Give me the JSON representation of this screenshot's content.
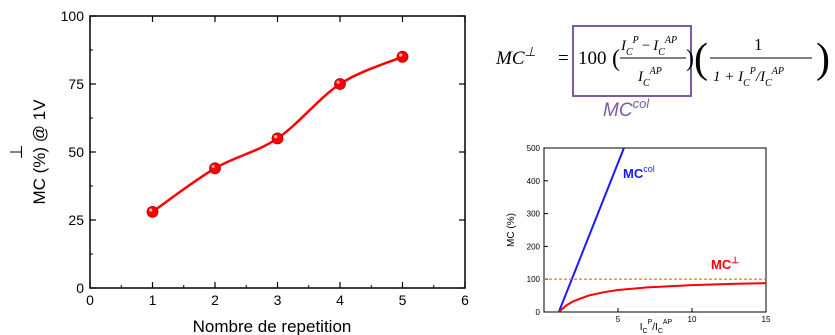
{
  "chart_data": [
    {
      "type": "line",
      "x": [
        1,
        2,
        3,
        4,
        5
      ],
      "values": [
        28,
        44,
        55,
        75,
        85
      ],
      "xlabel": "Nombre de repetition",
      "ylabel": "MC (%) @ 1V",
      "ylabel_symbol": "⊥",
      "xlim": [
        0,
        6
      ],
      "ylim": [
        0,
        100
      ],
      "xticks": [
        "0",
        "1",
        "2",
        "3",
        "4",
        "5",
        "6"
      ],
      "yticks": [
        "0",
        "25",
        "50",
        "75",
        "100"
      ],
      "grid": false,
      "color": "#ff0000"
    },
    {
      "type": "line",
      "xlim": [
        0,
        15
      ],
      "ylim": [
        0,
        500
      ],
      "xticks": [
        "5",
        "10",
        "15"
      ],
      "xtick_values": [
        5,
        10,
        15
      ],
      "yticks": [
        "0",
        "100",
        "200",
        "300",
        "400",
        "500"
      ],
      "ylabel": "MC (%)",
      "xlabel": "I_C^P/I_C^AP",
      "grid": false,
      "series": [
        {
          "name": "MC^col",
          "label_base": "MC",
          "label_sup": "col",
          "color": "#1a1aff",
          "x": [
            1,
            5.4
          ],
          "y": [
            0,
            500
          ]
        },
        {
          "name": "MC^⊥",
          "label_base": "MC",
          "label_sup": "⊥",
          "color": "#ff0000",
          "x": [
            1,
            1.5,
            2,
            3,
            4,
            5,
            7,
            10,
            13,
            15
          ],
          "y": [
            0,
            20,
            33,
            50,
            60,
            67,
            75,
            82,
            86,
            88
          ]
        },
        {
          "name": "asymptote",
          "color": "#e07000",
          "dashed": true,
          "x": [
            0,
            15
          ],
          "y": [
            100,
            100
          ]
        }
      ]
    }
  ],
  "formula": {
    "lhs": "MC",
    "lhs_sup": "⊥",
    "equals": "=",
    "coef": "100",
    "num_left": "I",
    "num_left_sub": "C",
    "num_left_sup": "P",
    "minus": "−",
    "num_right": "I",
    "num_right_sub": "C",
    "num_right_sup": "AP",
    "den": "I",
    "den_sub": "C",
    "den_sup": "AP",
    "one": "1",
    "den2_prefix": "1 + I",
    "den2_sub1": "C",
    "den2_sup1": "P",
    "den2_slash": "/I",
    "den2_sub2": "C",
    "den2_sup2": "AP",
    "box_label": "MC",
    "box_label_sup": "col",
    "box_color": "#7b5ba6"
  }
}
